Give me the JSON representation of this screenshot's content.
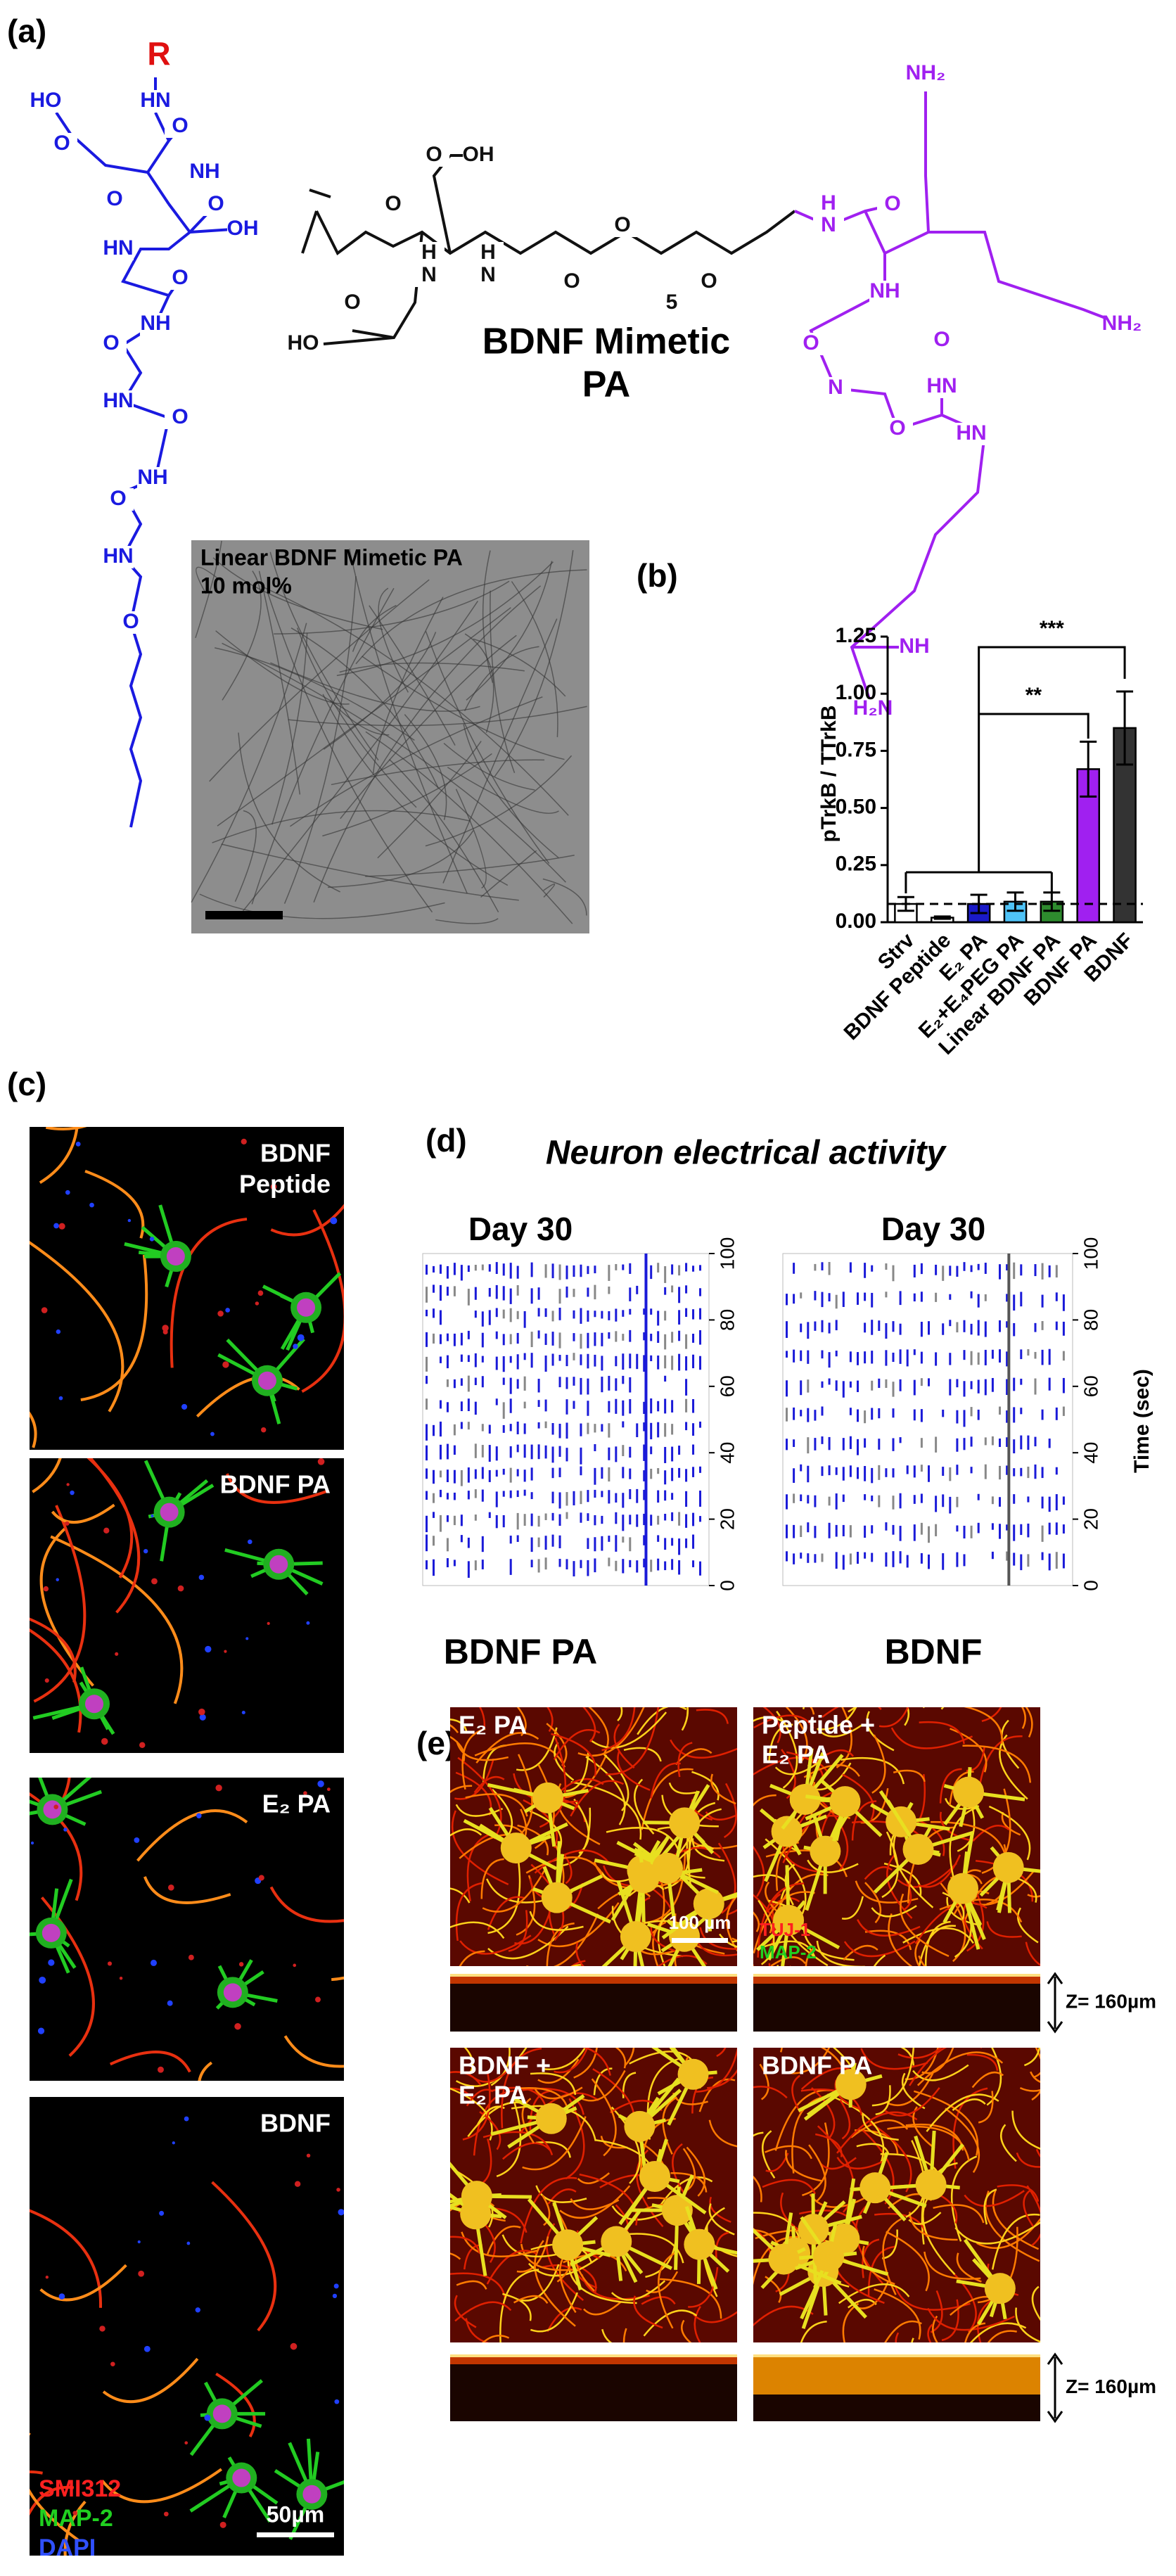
{
  "panel_labels": [
    "(a)",
    "(b)",
    "(c)",
    "(d)",
    "(e)"
  ],
  "panel_a": {
    "r_group": "R",
    "title_line1": "BDNF Mimetic",
    "title_line2": "PA",
    "atoms": [
      "HO",
      "O",
      "HN",
      "O",
      "NH",
      "O",
      "O",
      "OH",
      "HN",
      "O",
      "NH",
      "O",
      "HN",
      "O",
      "NH",
      "O",
      "HN",
      "O",
      "O",
      "OH",
      "H",
      "N",
      "H",
      "N",
      "O",
      "HO",
      "O",
      "O",
      "O",
      "5",
      "O",
      "NH₂",
      "H",
      "N",
      "O",
      "NH",
      "O",
      "N",
      "HN",
      "O",
      "NH₂",
      "O",
      "HN",
      "H₂N",
      "NH"
    ],
    "tem_label_1": "Linear BDNF Mimetic PA",
    "tem_label_2": "10 mol%"
  },
  "chart_data": {
    "type": "bar",
    "ylabel": "pTrkB / TTrkB",
    "categories": [
      "Strv",
      "BDNF Peptide",
      "E₂ PA",
      "E₂+E₄PEG PA",
      "Linear BDNF PA",
      "BDNF PA",
      "BDNF"
    ],
    "values": [
      0.08,
      0.02,
      0.08,
      0.09,
      0.09,
      0.67,
      0.85
    ],
    "errors": [
      0.03,
      0.005,
      0.04,
      0.04,
      0.04,
      0.12,
      0.16
    ],
    "colors": [
      "#ffffff",
      "#ffffff",
      "#1a1ac8",
      "#4fc3f7",
      "#2e8b2e",
      "#a020f0",
      "#333333"
    ],
    "ylim": [
      0,
      1.25
    ],
    "yticks": [
      {
        "value": 0,
        "label": "0.00"
      },
      0.25,
      {
        "value": 0.5,
        "label": "0.50"
      },
      0.75,
      {
        "value": 1,
        "label": "1.00"
      },
      1.25
    ],
    "reference_line": 0.08,
    "significance": [
      "***",
      "**"
    ]
  },
  "panel_c": {
    "images": [
      [
        "BDNF",
        "Peptide"
      ],
      [
        "BDNF PA"
      ],
      [
        "E₂ PA"
      ],
      [
        "BDNF"
      ]
    ],
    "stain_legend": [
      "SMI312",
      "MAP-2",
      "DAPI"
    ],
    "scale_bar": "50µm"
  },
  "panel_d": {
    "title": "Neuron electrical activity",
    "rasters": [
      {
        "day": "Day 30",
        "condition": "BDNF PA"
      },
      {
        "day": "Day 30",
        "condition": "BDNF"
      }
    ],
    "ylim": [
      0,
      100
    ],
    "yticks": [
      0,
      20,
      40,
      60,
      80,
      100
    ],
    "ylabel": "Time (sec)"
  },
  "panel_e": {
    "images": [
      [
        "E₂ PA"
      ],
      [
        "Peptide +",
        "E₂ PA"
      ],
      [
        "BDNF +",
        "E₂ PA"
      ],
      [
        "BDNF PA"
      ]
    ],
    "scale_bar": "100 µm",
    "stain_legend": [
      "TUJ-1",
      "MAP-2"
    ],
    "z_label": "Z= 160µm"
  }
}
